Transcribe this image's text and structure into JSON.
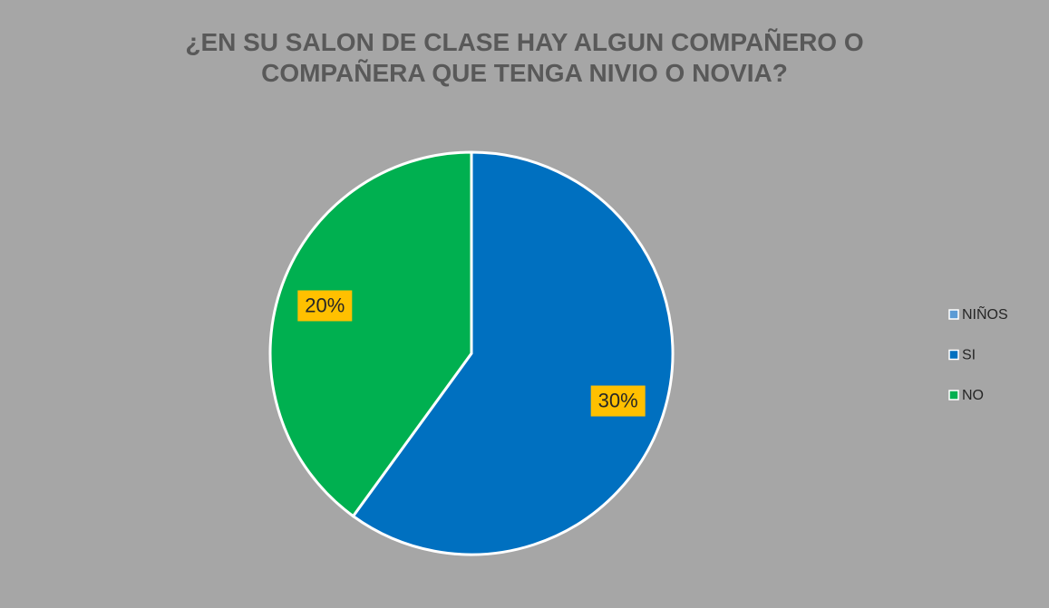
{
  "chart_data": {
    "type": "pie",
    "title": "¿EN SU SALON DE CLASE HAY ALGUN COMPAÑERO O COMPAÑERA QUE TENGA NIVIO O NOVIA?",
    "categories": [
      "NIÑOS",
      "SI",
      "NO"
    ],
    "values": [
      0,
      30,
      20
    ],
    "value_labels": [
      null,
      "30%",
      "20%"
    ],
    "colors": [
      "#5b9bd5",
      "#0070c0",
      "#00b050"
    ],
    "legend": "right"
  }
}
